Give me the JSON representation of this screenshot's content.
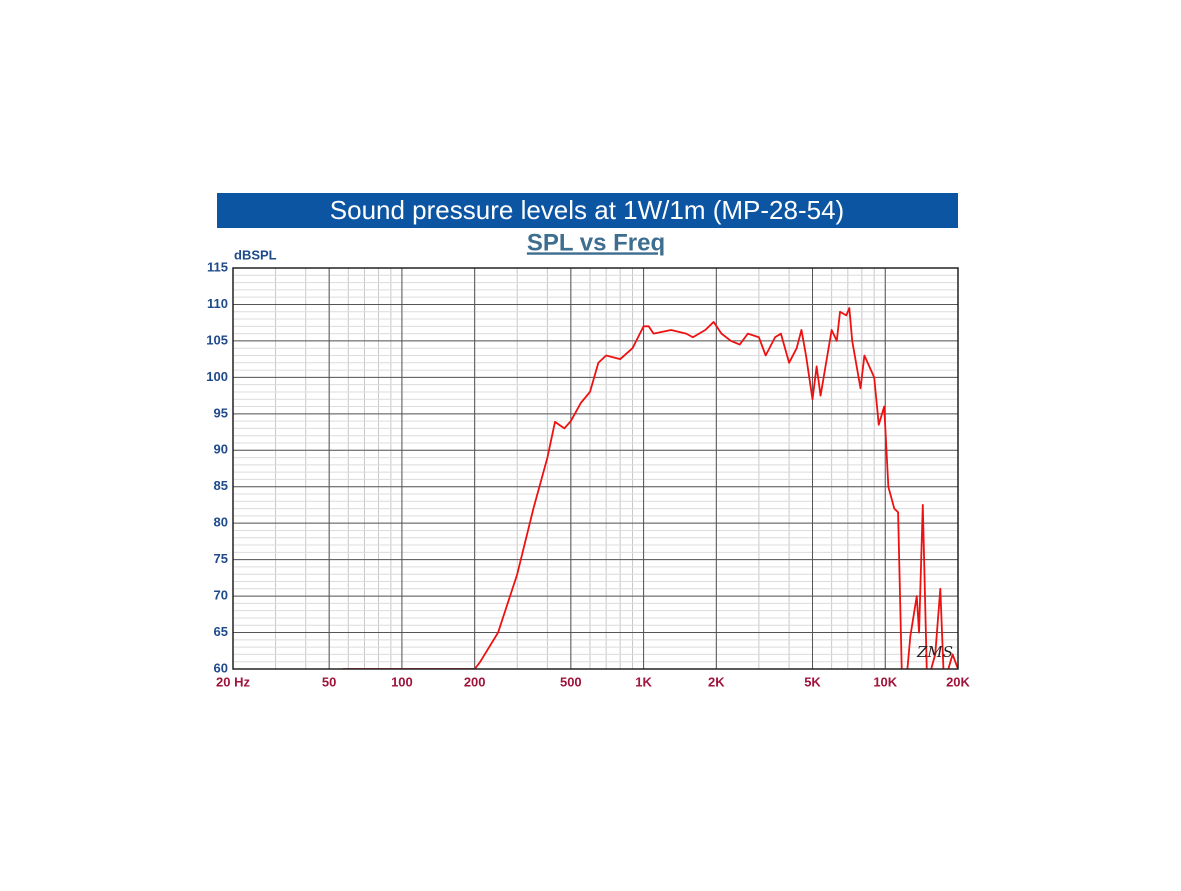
{
  "header": "Sound pressure levels at 1W/1m (MP-28-54)",
  "chart_data": {
    "type": "line",
    "title": "SPL vs Freq",
    "y_label": "dBSPL",
    "signature": "ZMS",
    "x_scale": "log",
    "grid": true,
    "minor_grid": true,
    "xlim": [
      20,
      20000
    ],
    "ylim": [
      60,
      115
    ],
    "xticks": [
      {
        "value": 20,
        "label": "20 Hz"
      },
      50,
      100,
      200,
      500,
      {
        "value": 1000,
        "label": "1K"
      },
      {
        "value": 2000,
        "label": "2K"
      },
      {
        "value": 5000,
        "label": "5K"
      },
      {
        "value": 10000,
        "label": "10K"
      },
      {
        "value": 20000,
        "label": "20K"
      }
    ],
    "yticks": [
      60,
      65,
      70,
      75,
      80,
      85,
      90,
      95,
      100,
      105,
      110,
      115
    ],
    "series": [
      {
        "color": "#ee1111",
        "x": [
          57,
          200,
          210,
          250,
          300,
          350,
          400,
          430,
          470,
          500,
          550,
          600,
          650,
          700,
          800,
          900,
          1000,
          1050,
          1100,
          1300,
          1500,
          1600,
          1800,
          1950,
          2100,
          2300,
          2500,
          2700,
          3000,
          3200,
          3500,
          3700,
          4000,
          4300,
          4500,
          4700,
          5000,
          5200,
          5400,
          6000,
          6300,
          6500,
          6900,
          7100,
          7300,
          7900,
          8200,
          9000,
          9400,
          9900,
          10300,
          10900,
          11300,
          11700,
          12200,
          12700,
          13500,
          13800,
          14300,
          14900,
          16100,
          16900,
          17500,
          19000,
          20000
        ],
        "values": [
          60,
          60,
          60.9,
          65,
          73,
          82,
          89,
          93.9,
          93,
          94,
          96.5,
          98,
          102,
          103,
          102.5,
          104,
          107,
          107,
          106,
          106.5,
          106,
          105.5,
          106.5,
          107.6,
          106,
          105,
          104.5,
          106,
          105.5,
          103,
          105.5,
          106,
          102,
          104,
          106.5,
          103,
          97,
          101.5,
          97.5,
          106.5,
          105,
          109,
          108.5,
          109.5,
          105,
          98.5,
          103,
          100,
          93.5,
          96,
          85,
          82,
          81.5,
          60,
          58,
          64.5,
          70,
          65,
          82.5,
          58,
          62,
          71,
          58,
          62,
          60
        ]
      }
    ]
  }
}
